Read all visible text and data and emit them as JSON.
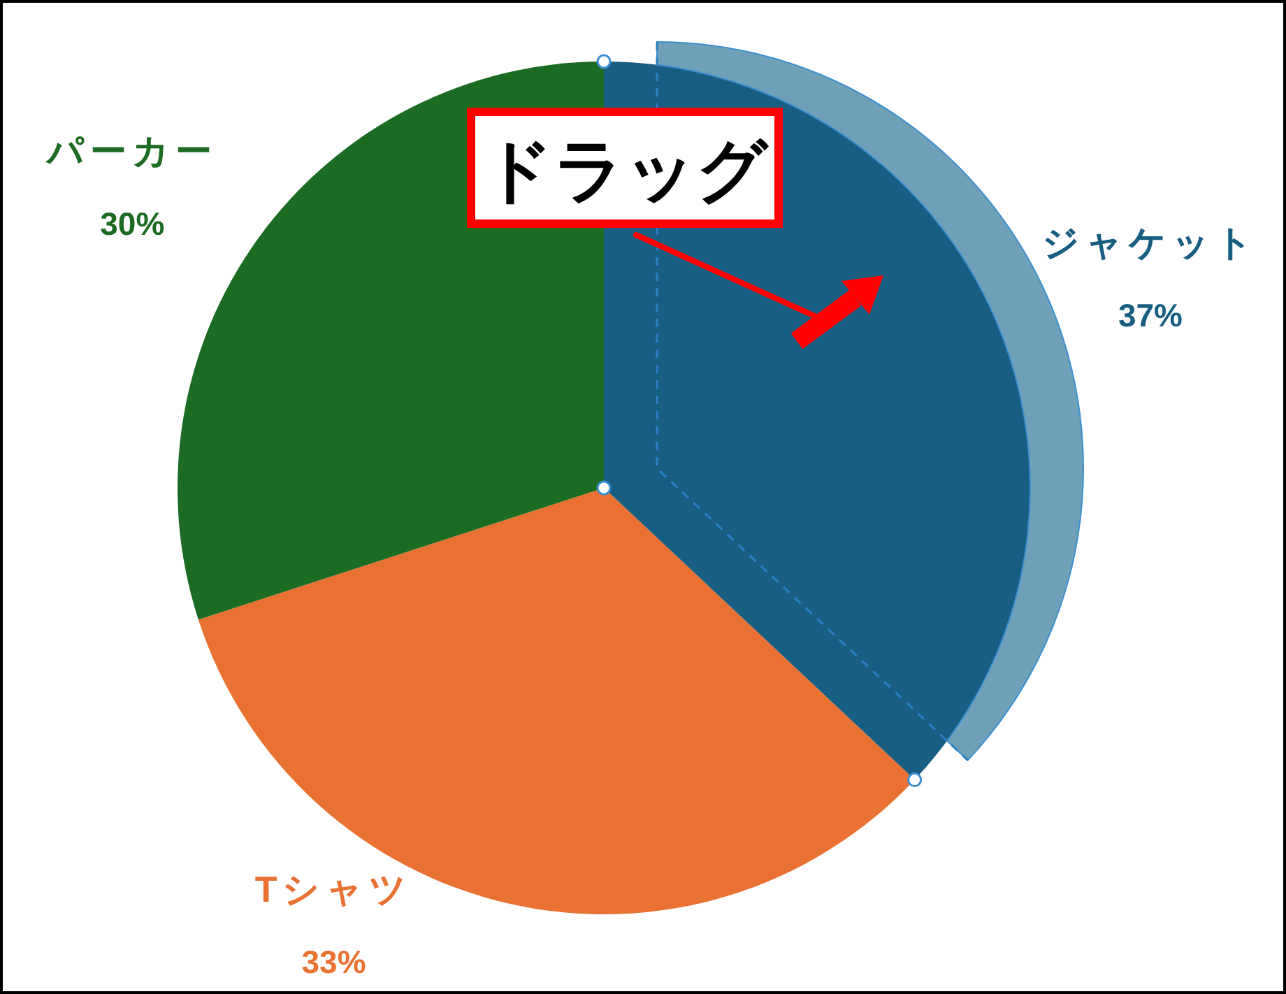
{
  "chart_data": {
    "type": "pie",
    "categories": [
      "ジャケット",
      "Tシャツ",
      "パーカー"
    ],
    "values": [
      37,
      33,
      30
    ],
    "colors": [
      "#175e82",
      "#e97132",
      "#1c6b23"
    ],
    "value_labels": [
      "37%",
      "33%",
      "30%"
    ],
    "annotations": [
      "ドラッグ"
    ]
  }
}
